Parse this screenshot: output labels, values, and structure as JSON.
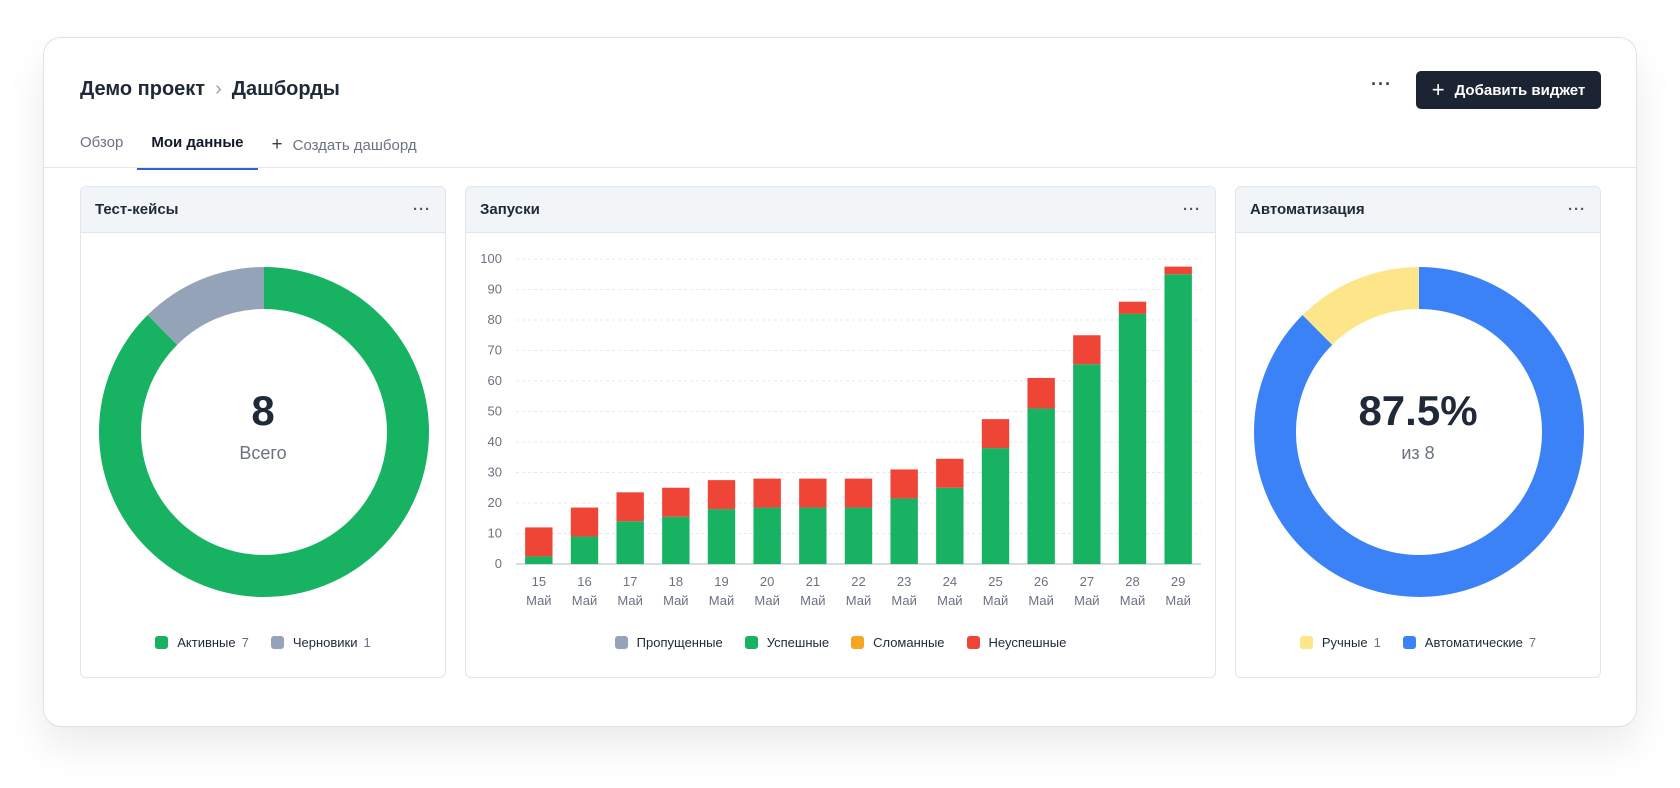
{
  "header": {
    "breadcrumb": [
      "Демо проект",
      "Дашборды"
    ],
    "more_label": "···",
    "add_widget_label": "Добавить виджет"
  },
  "tabs": [
    {
      "label": "Обзор"
    },
    {
      "label": "Мои данные",
      "active": true
    },
    {
      "label": "Создать дашборд"
    }
  ],
  "widgets": {
    "testcases": {
      "title": "Тест-кейсы",
      "total": "8",
      "total_label": "Всего",
      "legend": [
        {
          "label": "Активные",
          "count": "7",
          "color": "#18b263"
        },
        {
          "label": "Черновики",
          "count": "1",
          "color": "#94a3b8"
        }
      ]
    },
    "launches": {
      "title": "Запуски"
    },
    "automation": {
      "title": "Автоматизация",
      "value": "87.5%",
      "sub": "из 8",
      "legend": [
        {
          "label": "Ручные",
          "count": "1",
          "color": "#fde68a"
        },
        {
          "label": "Автоматические",
          "count": "7",
          "color": "#3b82f6"
        }
      ]
    }
  },
  "chart_data": {
    "type": "bar",
    "stacked": true,
    "title": "Запуски",
    "categories": [
      "15 Май",
      "16 Май",
      "17 Май",
      "18 Май",
      "19 Май",
      "20 Май",
      "21 Май",
      "22 Май",
      "23 Май",
      "24 Май",
      "25 Май",
      "26 Май",
      "27 Май",
      "28 Май",
      "29 Май"
    ],
    "series": [
      {
        "name": "Пропущенные",
        "color": "#94a3b8",
        "values": [
          0,
          0,
          0,
          0,
          0,
          0,
          0,
          0,
          0,
          0,
          0,
          0,
          0,
          0,
          0
        ]
      },
      {
        "name": "Успешные",
        "color": "#18b263",
        "values": [
          2.5,
          9,
          14,
          15.5,
          18,
          18.5,
          18.5,
          18.5,
          21.5,
          25,
          38,
          51,
          65.5,
          82,
          95
        ]
      },
      {
        "name": "Сломанные",
        "color": "#f5a623",
        "values": [
          0,
          0,
          0,
          0,
          0,
          0,
          0,
          0,
          0,
          0,
          0,
          0,
          0,
          0,
          0
        ]
      },
      {
        "name": "Неуспешные",
        "color": "#ef4536",
        "values": [
          9.5,
          9.5,
          9.5,
          9.5,
          9.5,
          9.5,
          9.5,
          9.5,
          9.5,
          9.5,
          9.5,
          10,
          9.5,
          4,
          2.5
        ]
      }
    ],
    "ylim": [
      0,
      100
    ],
    "yticks": [
      0,
      10,
      20,
      30,
      40,
      50,
      60,
      70,
      80,
      90,
      100
    ],
    "grid": true,
    "legend": "bottom"
  }
}
